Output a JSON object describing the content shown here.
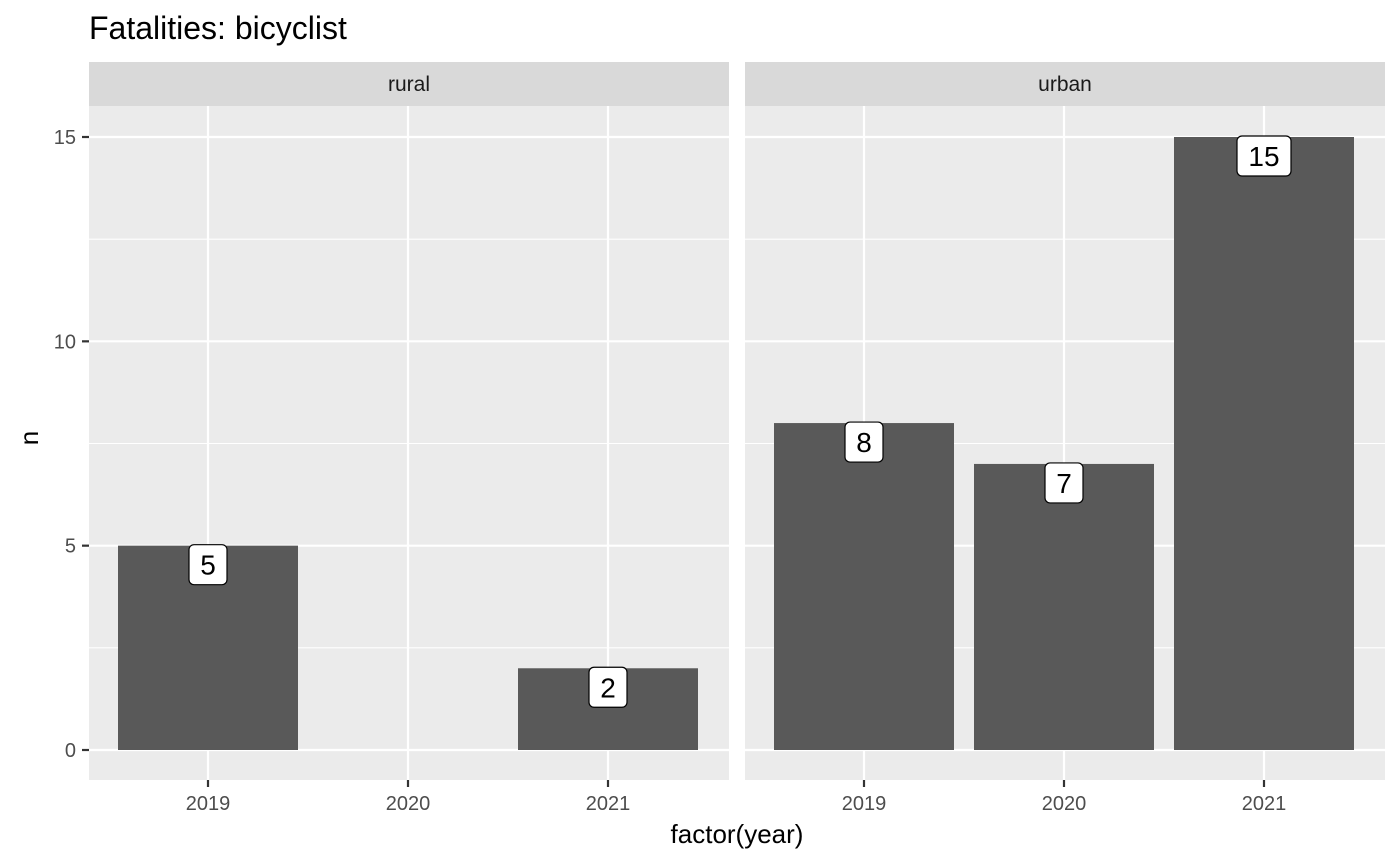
{
  "chart_data": {
    "type": "bar",
    "title": "Fatalities: bicyclist",
    "xlabel": "factor(year)",
    "ylabel": "n",
    "categories": [
      "2019",
      "2020",
      "2021"
    ],
    "ylim": [
      -0.75,
      16
    ],
    "yticks": [
      0,
      5,
      10,
      15
    ],
    "yminor": [
      2.5,
      7.5,
      12.5
    ],
    "grid": true,
    "facets": [
      {
        "strip": "rural",
        "values": [
          5,
          null,
          2
        ]
      },
      {
        "strip": "urban",
        "values": [
          8,
          7,
          15
        ]
      }
    ],
    "colors": {
      "bar": "#595959",
      "panel": "#ebebeb",
      "strip": "#d9d9d9"
    }
  }
}
